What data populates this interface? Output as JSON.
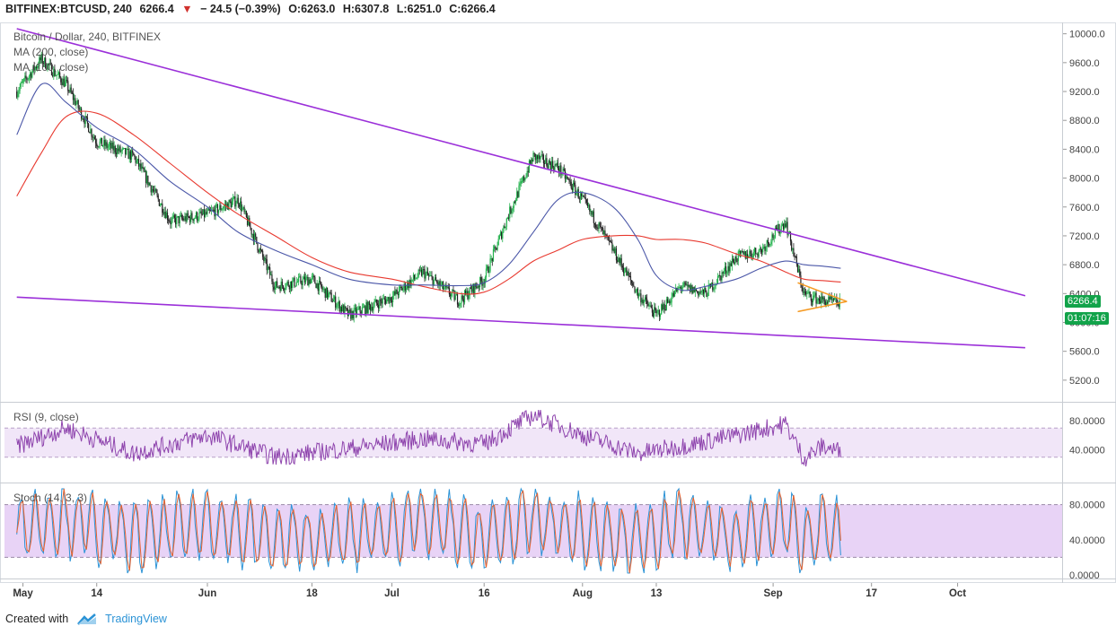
{
  "header": {
    "symbol": "BITFINEX:BTCUSD, 240",
    "last": "6266.4",
    "change": "− 24.5 (−0.39%)",
    "arrow": "▼",
    "open": "O:6263.0",
    "high": "H:6307.8",
    "low": "L:6251.0",
    "close": "C:6266.4"
  },
  "legend": {
    "title": "Bitcoin / Dollar, 240, BITFINEX",
    "ma200": "MA (200, close)",
    "ma100": "MA (100, close)"
  },
  "price_tag": "6266.4",
  "countdown_tag": "01:07:16",
  "rsi_label": "RSI (9, close)",
  "stoch_label": "Stoch (14, 3, 3)",
  "footer": {
    "created_with": "Created with",
    "brand": "TradingView"
  },
  "colors": {
    "candle_up": "#22b14c",
    "candle_down": "#222222",
    "ma200": "#e8392f",
    "ma100": "#4b57a8",
    "trendline": "#9b30d9",
    "triangle": "#f59a23",
    "rsi_line": "#8e44ad",
    "stoch_k": "#2b93d6",
    "stoch_d": "#e8622f",
    "price_tag": "#12a34a"
  },
  "chart_data": [
    {
      "type": "candlestick",
      "title": "Bitcoin / Dollar, 240, BITFINEX",
      "x_tick_labels": [
        "May",
        "14",
        "Jun",
        "18",
        "Jul",
        "16",
        "Aug",
        "13",
        "Sep",
        "17",
        "Oct"
      ],
      "y_tick_labels": [
        "10000.0",
        "9600.0",
        "9200.0",
        "8800.0",
        "8400.0",
        "8000.0",
        "7600.0",
        "7200.0",
        "6800.0",
        "6400.0",
        "6000.0",
        "5600.0",
        "5200.0"
      ],
      "ylim": [
        4900,
        10120
      ],
      "x": [
        "May 1",
        "May 5",
        "May 9",
        "May 14",
        "May 20",
        "May 26",
        "Jun 1",
        "Jun 6",
        "Jun 12",
        "Jun 18",
        "Jun 24",
        "Jul 1",
        "Jul 6",
        "Jul 12",
        "Jul 16",
        "Jul 20",
        "Jul 24",
        "Jul 28",
        "Aug 1",
        "Aug 6",
        "Aug 10",
        "Aug 13",
        "Aug 17",
        "Aug 21",
        "Aug 26",
        "Aug 30",
        "Sep 3",
        "Sep 6",
        "Sep 9",
        "Sep 12"
      ],
      "series": [
        {
          "name": "BTCUSD",
          "values": [
            9200,
            9650,
            9300,
            8500,
            8300,
            7400,
            7500,
            7700,
            6500,
            6600,
            6100,
            6350,
            6700,
            6300,
            6600,
            7500,
            8300,
            8150,
            7700,
            7000,
            6400,
            6100,
            6500,
            6400,
            6900,
            7000,
            7400,
            6400,
            6300,
            6266
          ]
        },
        {
          "name": "MA (200, close)",
          "values": [
            7750,
            8350,
            8850,
            8900,
            8600,
            8200,
            7800,
            7500,
            7200,
            6900,
            6700,
            6600,
            6500,
            6400,
            6420,
            6600,
            6850,
            7000,
            7150,
            7200,
            7200,
            7150,
            7150,
            7100,
            6950,
            6850,
            6700,
            6600,
            6580,
            6560
          ]
        },
        {
          "name": "MA (100, close)",
          "values": [
            8600,
            9300,
            9050,
            8700,
            8400,
            7950,
            7600,
            7250,
            7000,
            6800,
            6600,
            6520,
            6520,
            6510,
            6550,
            6800,
            7250,
            7700,
            7800,
            7600,
            7150,
            6650,
            6450,
            6500,
            6600,
            6750,
            6850,
            6800,
            6780,
            6750
          ]
        }
      ],
      "trendlines": [
        {
          "from": [
            "May 1",
            10070
          ],
          "to": [
            "Oct 12",
            6370
          ]
        },
        {
          "from": [
            "May 1",
            6350
          ],
          "to": [
            "Oct 12",
            5650
          ]
        }
      ],
      "triangle": {
        "start": "Sep 5",
        "apex": "Sep 13",
        "upper": 6550,
        "lower": 6150,
        "apex_price": 6290
      },
      "grid": false
    },
    {
      "type": "line",
      "title": "RSI (9, close)",
      "y_tick_labels": [
        "80.0000",
        "40.0000"
      ],
      "ylim": [
        0,
        100
      ],
      "band": [
        30,
        70
      ],
      "x": [
        "May 1",
        "May 9",
        "May 20",
        "Jun 1",
        "Jun 12",
        "Jun 24",
        "Jul 6",
        "Jul 16",
        "Jul 24",
        "Aug 1",
        "Aug 10",
        "Aug 17",
        "Aug 26",
        "Sep 3",
        "Sep 6",
        "Sep 9",
        "Sep 12"
      ],
      "series": [
        {
          "name": "RSI",
          "values": [
            45,
            70,
            35,
            60,
            30,
            42,
            55,
            48,
            88,
            60,
            35,
            45,
            60,
            76,
            28,
            45,
            38
          ]
        }
      ]
    },
    {
      "type": "line",
      "title": "Stoch (14, 3, 3)",
      "y_tick_labels": [
        "80.0000",
        "40.0000",
        "0.0000"
      ],
      "ylim": [
        0,
        100
      ],
      "band": [
        20,
        80
      ],
      "x": [
        "May 1",
        "May 9",
        "May 20",
        "Jun 1",
        "Jun 12",
        "Jun 24",
        "Jul 6",
        "Jul 16",
        "Jul 24",
        "Aug 1",
        "Aug 10",
        "Aug 17",
        "Aug 26",
        "Sep 3",
        "Sep 6",
        "Sep 9",
        "Sep 12"
      ],
      "series": [
        {
          "name": "%K",
          "values": [
            70,
            95,
            20,
            85,
            15,
            30,
            88,
            20,
            95,
            40,
            15,
            85,
            20,
            95,
            10,
            65,
            40
          ]
        },
        {
          "name": "%D",
          "values": [
            65,
            90,
            25,
            80,
            20,
            35,
            85,
            25,
            90,
            45,
            20,
            80,
            25,
            90,
            15,
            60,
            45
          ]
        }
      ]
    }
  ]
}
